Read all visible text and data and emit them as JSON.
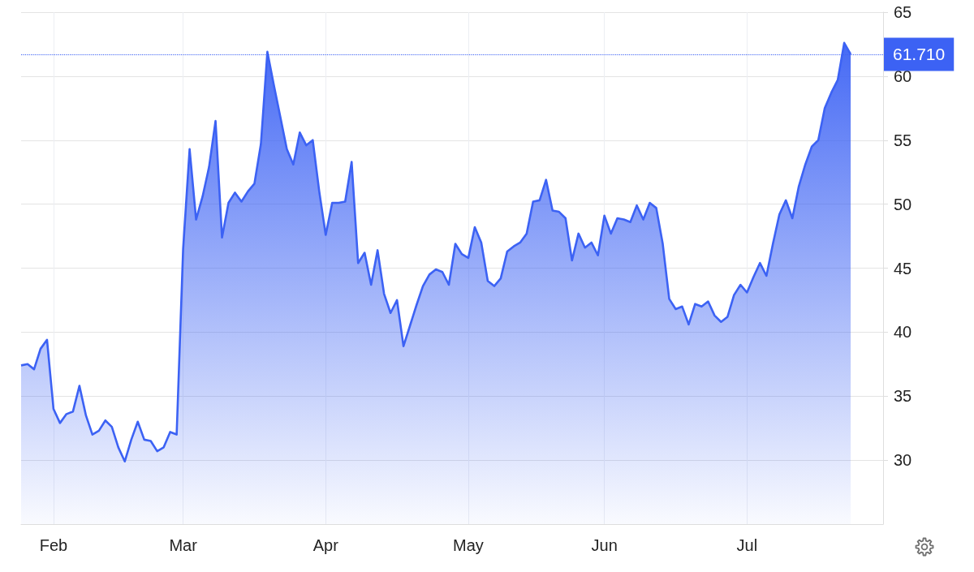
{
  "chart_data": {
    "type": "area",
    "categories": [
      null,
      null,
      null,
      null,
      null,
      "Feb",
      null,
      null,
      null,
      null,
      null,
      null,
      null,
      null,
      null,
      null,
      null,
      null,
      null,
      null,
      null,
      null,
      null,
      null,
      null,
      "Mar",
      null,
      null,
      null,
      null,
      null,
      null,
      null,
      null,
      null,
      null,
      null,
      null,
      null,
      null,
      null,
      null,
      null,
      null,
      null,
      null,
      null,
      "Apr",
      null,
      null,
      null,
      null,
      null,
      null,
      null,
      null,
      null,
      null,
      null,
      null,
      null,
      null,
      null,
      null,
      null,
      null,
      null,
      null,
      null,
      "May",
      null,
      null,
      null,
      null,
      null,
      null,
      null,
      null,
      null,
      null,
      null,
      null,
      null,
      null,
      null,
      null,
      null,
      null,
      null,
      null,
      "Jun",
      null,
      null,
      null,
      null,
      null,
      null,
      null,
      null,
      null,
      null,
      null,
      null,
      null,
      null,
      null,
      null,
      null,
      null,
      null,
      null,
      null,
      "Jul",
      null,
      null,
      null,
      null,
      null,
      null,
      null,
      null,
      null,
      null,
      null,
      null,
      null,
      null,
      null,
      null
    ],
    "values": [
      37.4,
      37.5,
      37.1,
      38.7,
      39.4,
      34.0,
      32.9,
      33.6,
      33.8,
      35.8,
      33.5,
      32.0,
      32.3,
      33.1,
      32.6,
      31.0,
      29.9,
      31.6,
      33.0,
      31.6,
      31.5,
      30.7,
      31.0,
      32.2,
      32.0,
      46.5,
      54.3,
      48.8,
      50.6,
      52.9,
      56.5,
      47.4,
      50.1,
      50.9,
      50.2,
      51.0,
      51.6,
      54.7,
      61.9,
      59.3,
      56.8,
      54.3,
      53.1,
      55.6,
      54.6,
      55.0,
      51.0,
      47.6,
      50.1,
      50.1,
      50.2,
      53.3,
      45.4,
      46.2,
      43.7,
      46.4,
      43.0,
      41.5,
      42.5,
      38.9,
      40.5,
      42.1,
      43.6,
      44.5,
      44.9,
      44.7,
      43.7,
      46.9,
      46.1,
      45.8,
      48.2,
      47.0,
      44.0,
      43.6,
      44.2,
      46.3,
      46.7,
      47.0,
      47.7,
      50.2,
      50.3,
      51.9,
      49.5,
      49.4,
      48.9,
      45.6,
      47.7,
      46.6,
      47.0,
      46.0,
      49.1,
      47.7,
      48.9,
      48.8,
      48.6,
      49.9,
      48.8,
      50.1,
      49.7,
      46.9,
      42.6,
      41.8,
      42.0,
      40.6,
      42.2,
      42.0,
      42.4,
      41.3,
      40.8,
      41.2,
      42.9,
      43.7,
      43.1,
      44.3,
      45.4,
      44.4,
      46.9,
      49.2,
      50.3,
      48.9,
      51.4,
      53.1,
      54.5,
      55.0,
      57.5,
      58.7,
      59.7,
      62.6,
      61.71
    ],
    "color": "#3c62f4",
    "ylim": [
      25,
      65
    ],
    "yticks": [
      30,
      35,
      40,
      45,
      50,
      55,
      60,
      65
    ],
    "grid": true,
    "ref_lines": [
      {
        "axis": "y",
        "value": 61.71,
        "label": "61.710",
        "color": "#3c62f4",
        "line_style": "dotted"
      }
    ]
  }
}
